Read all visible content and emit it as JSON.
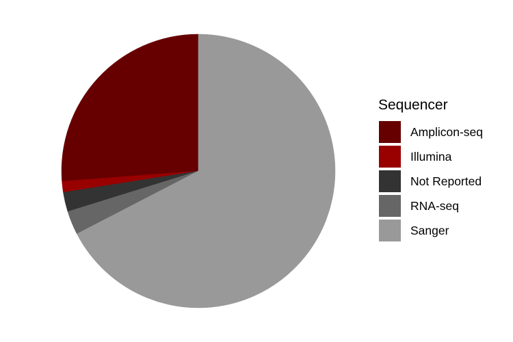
{
  "chart_data": {
    "type": "pie",
    "title": "",
    "legend": {
      "title": "Sequencer",
      "placement": "right"
    },
    "slices": [
      {
        "label": "Amplicon-seq",
        "value": 26.2,
        "color": "#660000"
      },
      {
        "label": "Illumina",
        "value": 1.3,
        "color": "#990000"
      },
      {
        "label": "Not Reported",
        "value": 2.3,
        "color": "#333333"
      },
      {
        "label": "RNA-seq",
        "value": 2.8,
        "color": "#666666"
      },
      {
        "label": "Sanger",
        "value": 67.4,
        "color": "#999999"
      }
    ]
  }
}
